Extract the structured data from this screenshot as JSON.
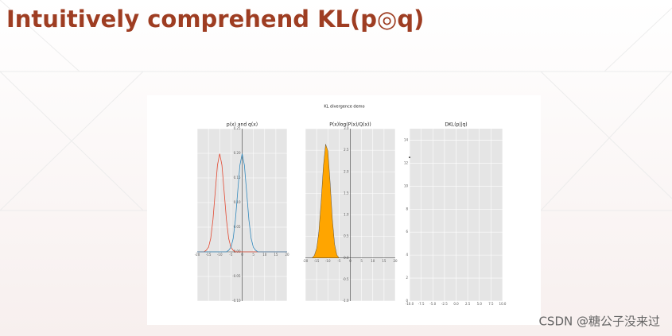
{
  "slide": {
    "title": "Intuitively comprehend KL(p◎q)",
    "watermark": "CSDN @糖公子没来过"
  },
  "figure": {
    "suptitle": "KL divergence demo"
  },
  "chart_data": [
    {
      "type": "line",
      "title": "p(x) and q(x)",
      "centered_axes": true,
      "grid": true,
      "x": [
        -20,
        -19,
        -18,
        -17,
        -16,
        -15,
        -14,
        -13,
        -12,
        -11,
        -10,
        -9,
        -8,
        -7,
        -6,
        -5,
        -4,
        -3,
        -2,
        -1,
        0,
        1,
        2,
        3,
        4,
        5,
        6,
        7,
        8,
        9,
        10,
        11,
        12,
        13,
        14,
        15,
        16,
        17,
        18,
        19,
        20
      ],
      "series": [
        {
          "color": "#e24a33",
          "values": [
            0,
            0,
            0,
            0,
            0.003,
            0.009,
            0.027,
            0.065,
            0.121,
            0.176,
            0.199,
            0.176,
            0.121,
            0.065,
            0.027,
            0.009,
            0.003,
            0,
            0,
            0,
            0,
            0,
            0,
            0,
            0,
            0,
            0,
            0,
            0,
            0,
            0,
            0,
            0,
            0,
            0,
            0,
            0,
            0,
            0,
            0,
            0
          ]
        },
        {
          "color": "#348abd",
          "values": [
            0,
            0,
            0,
            0,
            0,
            0,
            0,
            0,
            0,
            0,
            0,
            0,
            0,
            0,
            0.003,
            0.009,
            0.027,
            0.065,
            0.121,
            0.176,
            0.199,
            0.176,
            0.121,
            0.065,
            0.027,
            0.009,
            0.003,
            0,
            0,
            0,
            0,
            0,
            0,
            0,
            0,
            0,
            0,
            0,
            0,
            0,
            0
          ]
        }
      ],
      "xlim": [
        -20,
        20
      ],
      "ylim": [
        -0.1,
        0.25
      ],
      "xticks": [
        -20,
        -15,
        -10,
        -5,
        0,
        5,
        10,
        15,
        20
      ],
      "yticks": [
        {
          "value": -0.1,
          "label": "-0.10"
        },
        -0.05,
        {
          "value": 0,
          "label": "0.00"
        },
        0.05,
        {
          "value": 0.1,
          "label": "0.10"
        },
        0.15,
        {
          "value": 0.2,
          "label": "0.20"
        },
        0.25
      ]
    },
    {
      "type": "area",
      "title": "P(x)log(P(x)/Q(x))",
      "centered_axes": true,
      "grid": true,
      "x": [
        -20,
        -19,
        -18,
        -17,
        -16,
        -15,
        -14,
        -13,
        -12,
        -11,
        -10,
        -9,
        -8,
        -7,
        -6,
        -5,
        -4,
        -3,
        -2,
        -1,
        0,
        1,
        2,
        3,
        4,
        5,
        6,
        7,
        8,
        9,
        10,
        11,
        12,
        13,
        14,
        15,
        16,
        17,
        18,
        19,
        20
      ],
      "series": [
        {
          "color": "#ffa500",
          "values": [
            0,
            0,
            0,
            0,
            0.06,
            0.22,
            0.61,
            1.3,
            2.12,
            2.64,
            2.49,
            1.76,
            0.91,
            0.32,
            0.07,
            0,
            0,
            0,
            0,
            0,
            0,
            0,
            0,
            0,
            0,
            0,
            0,
            0,
            0,
            0,
            0,
            0,
            0,
            0,
            0,
            0,
            0,
            0,
            0,
            0,
            0
          ]
        }
      ],
      "xlim": [
        -20,
        20
      ],
      "ylim": [
        -1,
        3
      ],
      "xticks": [
        -20,
        -15,
        -10,
        -5,
        0,
        5,
        10,
        15,
        20
      ],
      "yticks": [
        {
          "value": -1,
          "label": "-1.0"
        },
        -0.5,
        {
          "value": 0,
          "label": "0.0"
        },
        0.5,
        {
          "value": 1,
          "label": "1.0"
        },
        1.5,
        {
          "value": 2,
          "label": "2.0"
        },
        2.5,
        {
          "value": 3,
          "label": "3.0"
        }
      ]
    },
    {
      "type": "scatter",
      "title": "DKL(p||q)",
      "centered_axes": false,
      "grid": true,
      "x": [
        -10
      ],
      "values": [
        12.5
      ],
      "color": "#444444",
      "xlim": [
        -10,
        10
      ],
      "ylim": [
        0,
        15
      ],
      "xticks": [
        {
          "value": -10,
          "label": "-10.0"
        },
        -7.5,
        {
          "value": -5,
          "label": "-5.0"
        },
        -2.5,
        {
          "value": 0,
          "label": "0.0"
        },
        2.5,
        {
          "value": 5,
          "label": "5.0"
        },
        7.5,
        {
          "value": 10,
          "label": "10.0"
        }
      ],
      "yticks": [
        0,
        2,
        4,
        6,
        8,
        10,
        12,
        14
      ]
    }
  ]
}
